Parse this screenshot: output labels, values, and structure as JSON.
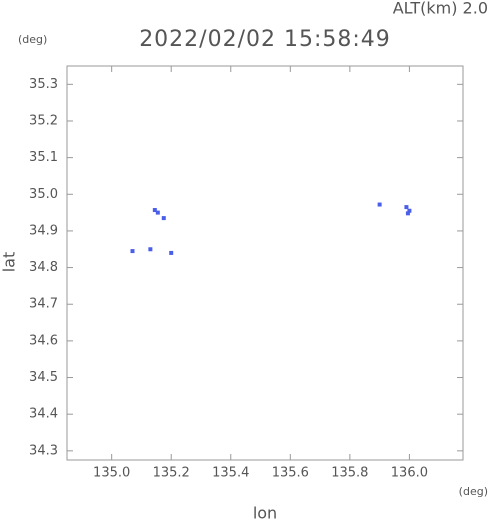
{
  "chart_data": {
    "type": "scatter",
    "title": "2022/02/02 15:58:49",
    "annotation": "ALT(km) 2.0",
    "y_unit": "(deg)",
    "x_unit": "(deg)",
    "x_label": "lon",
    "y_label": "lat",
    "color": "#4a5ee8",
    "x": [
      135.145,
      135.155,
      135.175,
      135.07,
      135.13,
      135.2,
      135.9,
      135.99,
      136.0,
      135.995
    ],
    "values": [
      34.957,
      34.95,
      34.935,
      34.845,
      34.85,
      34.84,
      34.972,
      34.965,
      34.955,
      34.948
    ],
    "xlim": [
      134.85,
      136.18
    ],
    "ylim": [
      34.275,
      35.35
    ],
    "xticks": [
      {
        "value": 135.0,
        "label": "135.0"
      },
      135.2,
      135.4,
      135.6,
      135.8,
      {
        "value": 136.0,
        "label": "136.0"
      }
    ],
    "yticks": [
      34.3,
      34.4,
      34.5,
      34.6,
      34.7,
      34.8,
      34.9,
      {
        "value": 35.0,
        "label": "35.0"
      },
      35.1,
      35.2,
      35.3
    ]
  }
}
